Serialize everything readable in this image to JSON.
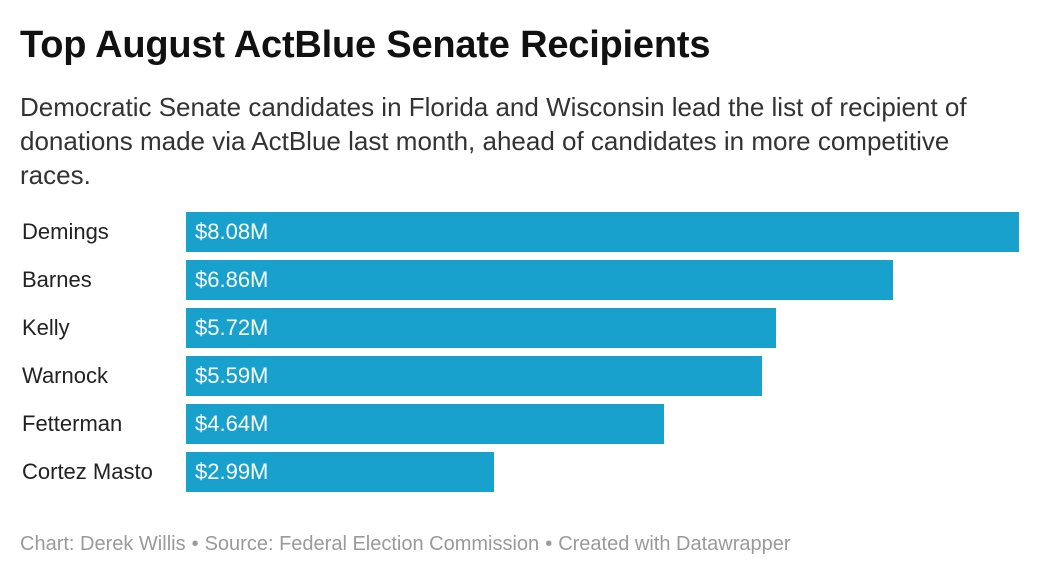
{
  "header": {
    "title": "Top August ActBlue Senate Recipients",
    "subtitle": "Democratic Senate candidates in Florida and Wisconsin lead the list of recipient of donations made via ActBlue last month, ahead of candidates in more competitive races."
  },
  "chart_data": {
    "type": "bar",
    "orientation": "horizontal",
    "title": "Top August ActBlue Senate Recipients",
    "categories": [
      "Demings",
      "Barnes",
      "Kelly",
      "Warnock",
      "Fetterman",
      "Cortez Masto"
    ],
    "values": [
      8.08,
      6.86,
      5.72,
      5.59,
      4.64,
      2.99
    ],
    "value_labels": [
      "$8.08M",
      "$6.86M",
      "$5.72M",
      "$5.59M",
      "$4.64M",
      "$2.99M"
    ],
    "xlim": [
      0,
      8.08
    ],
    "grid": false,
    "bar_color": "#18a1cd"
  },
  "footer": {
    "chart_credit": "Chart: Derek Willis",
    "source": "Source: Federal Election Commission",
    "created_with": "Created with Datawrapper",
    "separator": "•"
  },
  "colors": {
    "bar": "#18a1cd",
    "footer_text": "#9a9a9a"
  }
}
